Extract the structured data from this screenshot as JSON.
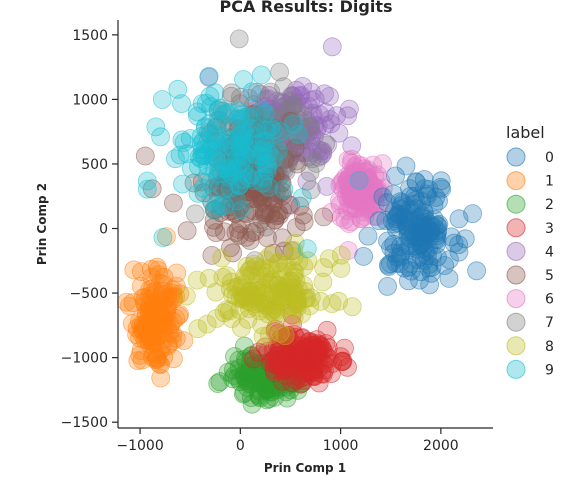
{
  "chart_data": {
    "type": "scatter",
    "title": "PCA Results: Digits",
    "xlabel": "Prin Comp 1",
    "ylabel": "Prin Comp 2",
    "xlim": [
      -1220,
      2520
    ],
    "ylim": [
      -1545,
      1615
    ],
    "xticks": [
      -1000,
      0,
      1000,
      2000
    ],
    "xtick_labels": [
      "−1000",
      "0",
      "1000",
      "2000"
    ],
    "yticks": [
      -1500,
      -1000,
      -500,
      0,
      500,
      1000,
      1500
    ],
    "ytick_labels": [
      "−1500",
      "−1000",
      "−500",
      "0",
      "500",
      "1000",
      "1500"
    ],
    "grid": false,
    "legend": {
      "title": "label",
      "placement": "outside-right"
    },
    "series": [
      {
        "name": "0",
        "color": "#1f77b4",
        "cluster": {
          "center": [
            1750,
            0
          ],
          "spread": [
            380,
            380
          ]
        }
      },
      {
        "name": "1",
        "color": "#ff7f0e",
        "cluster": {
          "center": [
            -850,
            -700
          ],
          "spread": [
            220,
            350
          ]
        }
      },
      {
        "name": "2",
        "color": "#2ca02c",
        "cluster": {
          "center": [
            300,
            -1150
          ],
          "spread": [
            380,
            180
          ]
        }
      },
      {
        "name": "3",
        "color": "#d62728",
        "cluster": {
          "center": [
            600,
            -1000
          ],
          "spread": [
            400,
            200
          ]
        }
      },
      {
        "name": "4",
        "color": "#9467bd",
        "cluster": {
          "center": [
            500,
            750
          ],
          "spread": [
            500,
            400
          ]
        }
      },
      {
        "name": "5",
        "color": "#8c564b",
        "cluster": {
          "center": [
            100,
            300
          ],
          "spread": [
            600,
            500
          ]
        }
      },
      {
        "name": "6",
        "color": "#e377c2",
        "cluster": {
          "center": [
            1200,
            300
          ],
          "spread": [
            200,
            200
          ]
        }
      },
      {
        "name": "7",
        "color": "#7f7f7f",
        "cluster": {
          "center": [
            200,
            600
          ],
          "spread": [
            500,
            500
          ]
        }
      },
      {
        "name": "8",
        "color": "#bcbd22",
        "cluster": {
          "center": [
            300,
            -500
          ],
          "spread": [
            600,
            280
          ]
        }
      },
      {
        "name": "9",
        "color": "#17becf",
        "cluster": {
          "center": [
            -100,
            600
          ],
          "spread": [
            600,
            500
          ]
        }
      }
    ]
  }
}
